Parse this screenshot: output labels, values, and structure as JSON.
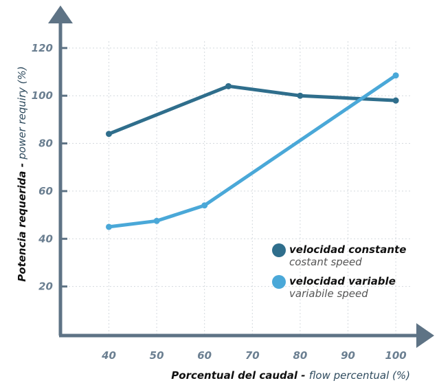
{
  "chart_data": {
    "type": "line",
    "x": [
      40,
      50,
      60,
      70,
      80,
      90,
      100
    ],
    "xlim": [
      30,
      105
    ],
    "ylim": [
      0,
      130
    ],
    "x_ticks": [
      "40",
      "50",
      "60",
      "70",
      "80",
      "90",
      "100"
    ],
    "y_ticks": [
      "20",
      "40",
      "60",
      "80",
      "100",
      "120"
    ],
    "y_tick_values": [
      20,
      40,
      60,
      80,
      100,
      120
    ],
    "grid": true,
    "legend_position": "bottom-right",
    "xlabel": {
      "main": "Porcentual del caudal - ",
      "secondary": "flow percentual (%)"
    },
    "ylabel": {
      "main": "Potencia requerida - ",
      "secondary": "power requiry (%)"
    },
    "series": [
      {
        "name": "velocidad constante",
        "subname": "costant speed",
        "color": "#2f6e8c",
        "points": [
          [
            40,
            84
          ],
          [
            65,
            104
          ],
          [
            80,
            100
          ],
          [
            100,
            98
          ]
        ]
      },
      {
        "name": "velocidad variable",
        "subname": "variabile speed",
        "color": "#4aa8d8",
        "points": [
          [
            40,
            45
          ],
          [
            50,
            47.5
          ],
          [
            60,
            54
          ],
          [
            100,
            108.5
          ]
        ]
      }
    ]
  }
}
